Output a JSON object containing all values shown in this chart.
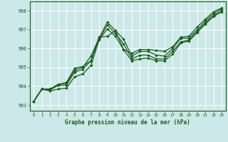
{
  "xlabel": "Graphe pression niveau de la mer (hPa)",
  "background_color": "#cce8e8",
  "grid_color": "#b0d8d8",
  "line_color": "#1a5c1a",
  "xlim": [
    -0.5,
    23.5
  ],
  "ylim": [
    992.7,
    998.5
  ],
  "yticks": [
    993,
    994,
    995,
    996,
    997,
    998
  ],
  "xticks": [
    0,
    1,
    2,
    3,
    4,
    5,
    6,
    7,
    8,
    9,
    10,
    11,
    12,
    13,
    14,
    15,
    16,
    17,
    18,
    19,
    20,
    21,
    22,
    23
  ],
  "series": [
    {
      "x": [
        0,
        1,
        2,
        3,
        4,
        5,
        6,
        7,
        8,
        9,
        10,
        11,
        12,
        13,
        14,
        15,
        16,
        17,
        18,
        19,
        20,
        21,
        22,
        23
      ],
      "y": [
        993.2,
        993.85,
        993.75,
        993.85,
        993.9,
        994.5,
        994.65,
        995.1,
        996.45,
        997.05,
        996.65,
        995.95,
        995.35,
        995.45,
        995.5,
        995.35,
        995.35,
        995.7,
        996.3,
        996.4,
        996.85,
        997.3,
        997.7,
        997.95
      ]
    },
    {
      "x": [
        0,
        1,
        2,
        3,
        4,
        5,
        6,
        7,
        8,
        9,
        10,
        11,
        12,
        13,
        14,
        15,
        16,
        17,
        18,
        19,
        20,
        21,
        22,
        23
      ],
      "y": [
        993.2,
        993.85,
        993.8,
        994.05,
        994.05,
        994.75,
        994.9,
        995.35,
        996.5,
        997.25,
        996.8,
        996.25,
        995.45,
        995.65,
        995.65,
        995.45,
        995.45,
        995.85,
        996.35,
        996.45,
        996.9,
        997.35,
        997.75,
        998.0
      ]
    },
    {
      "x": [
        0,
        1,
        2,
        3,
        4,
        5,
        6,
        7,
        8,
        9,
        10,
        11,
        12,
        13,
        14,
        15,
        16,
        17,
        18,
        19,
        20,
        21,
        22,
        23
      ],
      "y": [
        993.2,
        993.85,
        993.85,
        994.1,
        994.15,
        994.85,
        995.0,
        995.6,
        996.55,
        997.4,
        996.95,
        996.5,
        995.6,
        995.85,
        995.85,
        995.65,
        995.6,
        996.0,
        996.55,
        996.55,
        997.0,
        997.45,
        997.85,
        998.1
      ]
    },
    {
      "x": [
        0,
        1,
        2,
        3,
        4,
        5,
        6,
        7,
        8,
        9,
        10,
        11,
        12,
        13,
        14,
        15,
        16,
        17,
        18,
        19,
        20,
        21,
        22,
        23
      ],
      "y": [
        993.2,
        993.85,
        993.85,
        994.1,
        994.2,
        994.95,
        995.05,
        995.35,
        996.6,
        996.65,
        996.95,
        995.95,
        995.75,
        995.95,
        995.95,
        995.9,
        995.85,
        996.1,
        996.6,
        996.65,
        997.15,
        997.55,
        997.95,
        998.15
      ]
    }
  ]
}
